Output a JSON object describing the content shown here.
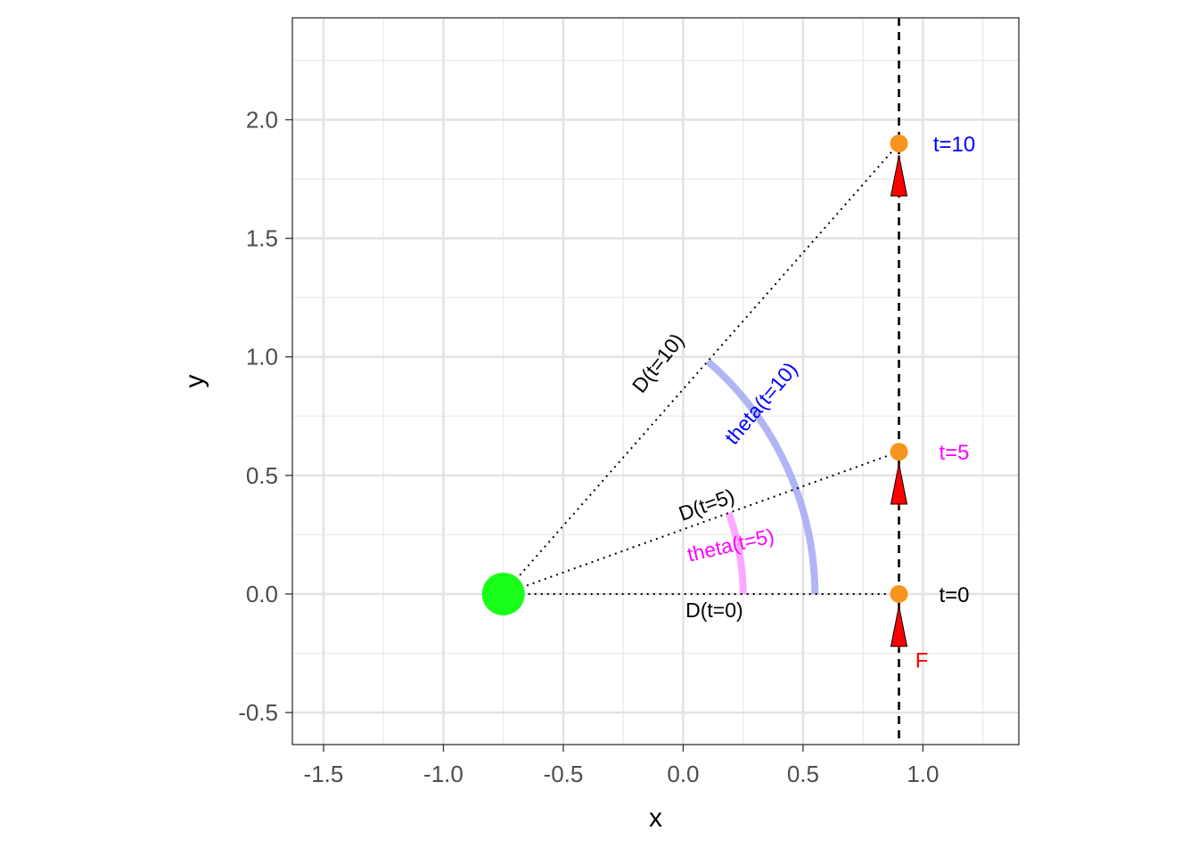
{
  "chart_data": {
    "type": "scatter",
    "title": "",
    "xlabel": "x",
    "ylabel": "y",
    "xlim": [
      -1.63,
      1.4
    ],
    "ylim": [
      -0.635,
      2.43
    ],
    "grid": true,
    "legend": "none",
    "x_ticks": [
      {
        "value": -1.5,
        "label": "-1.5"
      },
      {
        "value": -1.0,
        "label": "-1.0"
      },
      {
        "value": -0.5,
        "label": "-0.5"
      },
      {
        "value": 0.0,
        "label": "0.0"
      },
      {
        "value": 0.5,
        "label": "0.5"
      },
      {
        "value": 1.0,
        "label": "1.0"
      }
    ],
    "y_ticks": [
      {
        "value": -0.5,
        "label": "-0.5"
      },
      {
        "value": 0.0,
        "label": "0.0"
      },
      {
        "value": 0.5,
        "label": "0.5"
      },
      {
        "value": 1.0,
        "label": "1.0"
      },
      {
        "value": 1.5,
        "label": "1.5"
      },
      {
        "value": 2.0,
        "label": "2.0"
      }
    ],
    "x_minor": [
      -1.25,
      -0.75,
      -0.25,
      0.25,
      0.75,
      1.25
    ],
    "y_minor": [
      -0.25,
      0.25,
      0.75,
      1.25,
      1.75,
      2.25
    ],
    "origin": {
      "x": -0.75,
      "y": 0.0,
      "color": "#1aff1a"
    },
    "path_line": {
      "x": 0.9,
      "style": "dashed",
      "color": "#000000"
    },
    "points": [
      {
        "x": 0.9,
        "y": 0.0,
        "label": "t=0",
        "label_color": "#000000"
      },
      {
        "x": 0.9,
        "y": 0.6,
        "label": "t=5",
        "label_color": "#ff00ff"
      },
      {
        "x": 0.9,
        "y": 1.9,
        "label": "t=10",
        "label_color": "#0000ff"
      }
    ],
    "point_color": "#f7941d",
    "distance_labels": [
      {
        "label": "D(t=0)",
        "x": 0.13,
        "y": -0.075,
        "angle": 0
      },
      {
        "label": "D(t=5)",
        "x": 0.1,
        "y": 0.37,
        "angle": 20
      },
      {
        "label": "D(t=10)",
        "x": -0.1,
        "y": 0.97,
        "angle": 51.5
      }
    ],
    "arcs": [
      {
        "radius": 1.0,
        "t_end": 5,
        "color": "#ff99ff",
        "label": "theta(t=5)",
        "label_color": "#ff00ff",
        "label_x": 0.2,
        "label_y": 0.2,
        "label_angle": 13
      },
      {
        "radius": 1.3,
        "t_end": 10,
        "color": "#a3a8f5",
        "label": "theta(t=10)",
        "label_color": "#0000ff",
        "label_x": 0.33,
        "label_y": 0.8,
        "label_angle": 50
      }
    ],
    "force_arrows": [
      {
        "x": 0.9,
        "y_base": -0.23,
        "y_tip": -0.05
      },
      {
        "x": 0.9,
        "y_base": 0.37,
        "y_tip": 0.55
      },
      {
        "x": 0.9,
        "y_base": 1.67,
        "y_tip": 1.85
      }
    ],
    "force_label": {
      "text": "F",
      "x": 0.995,
      "y": -0.31,
      "color": "#ff0000"
    },
    "arrow_color": "#ff0000"
  }
}
